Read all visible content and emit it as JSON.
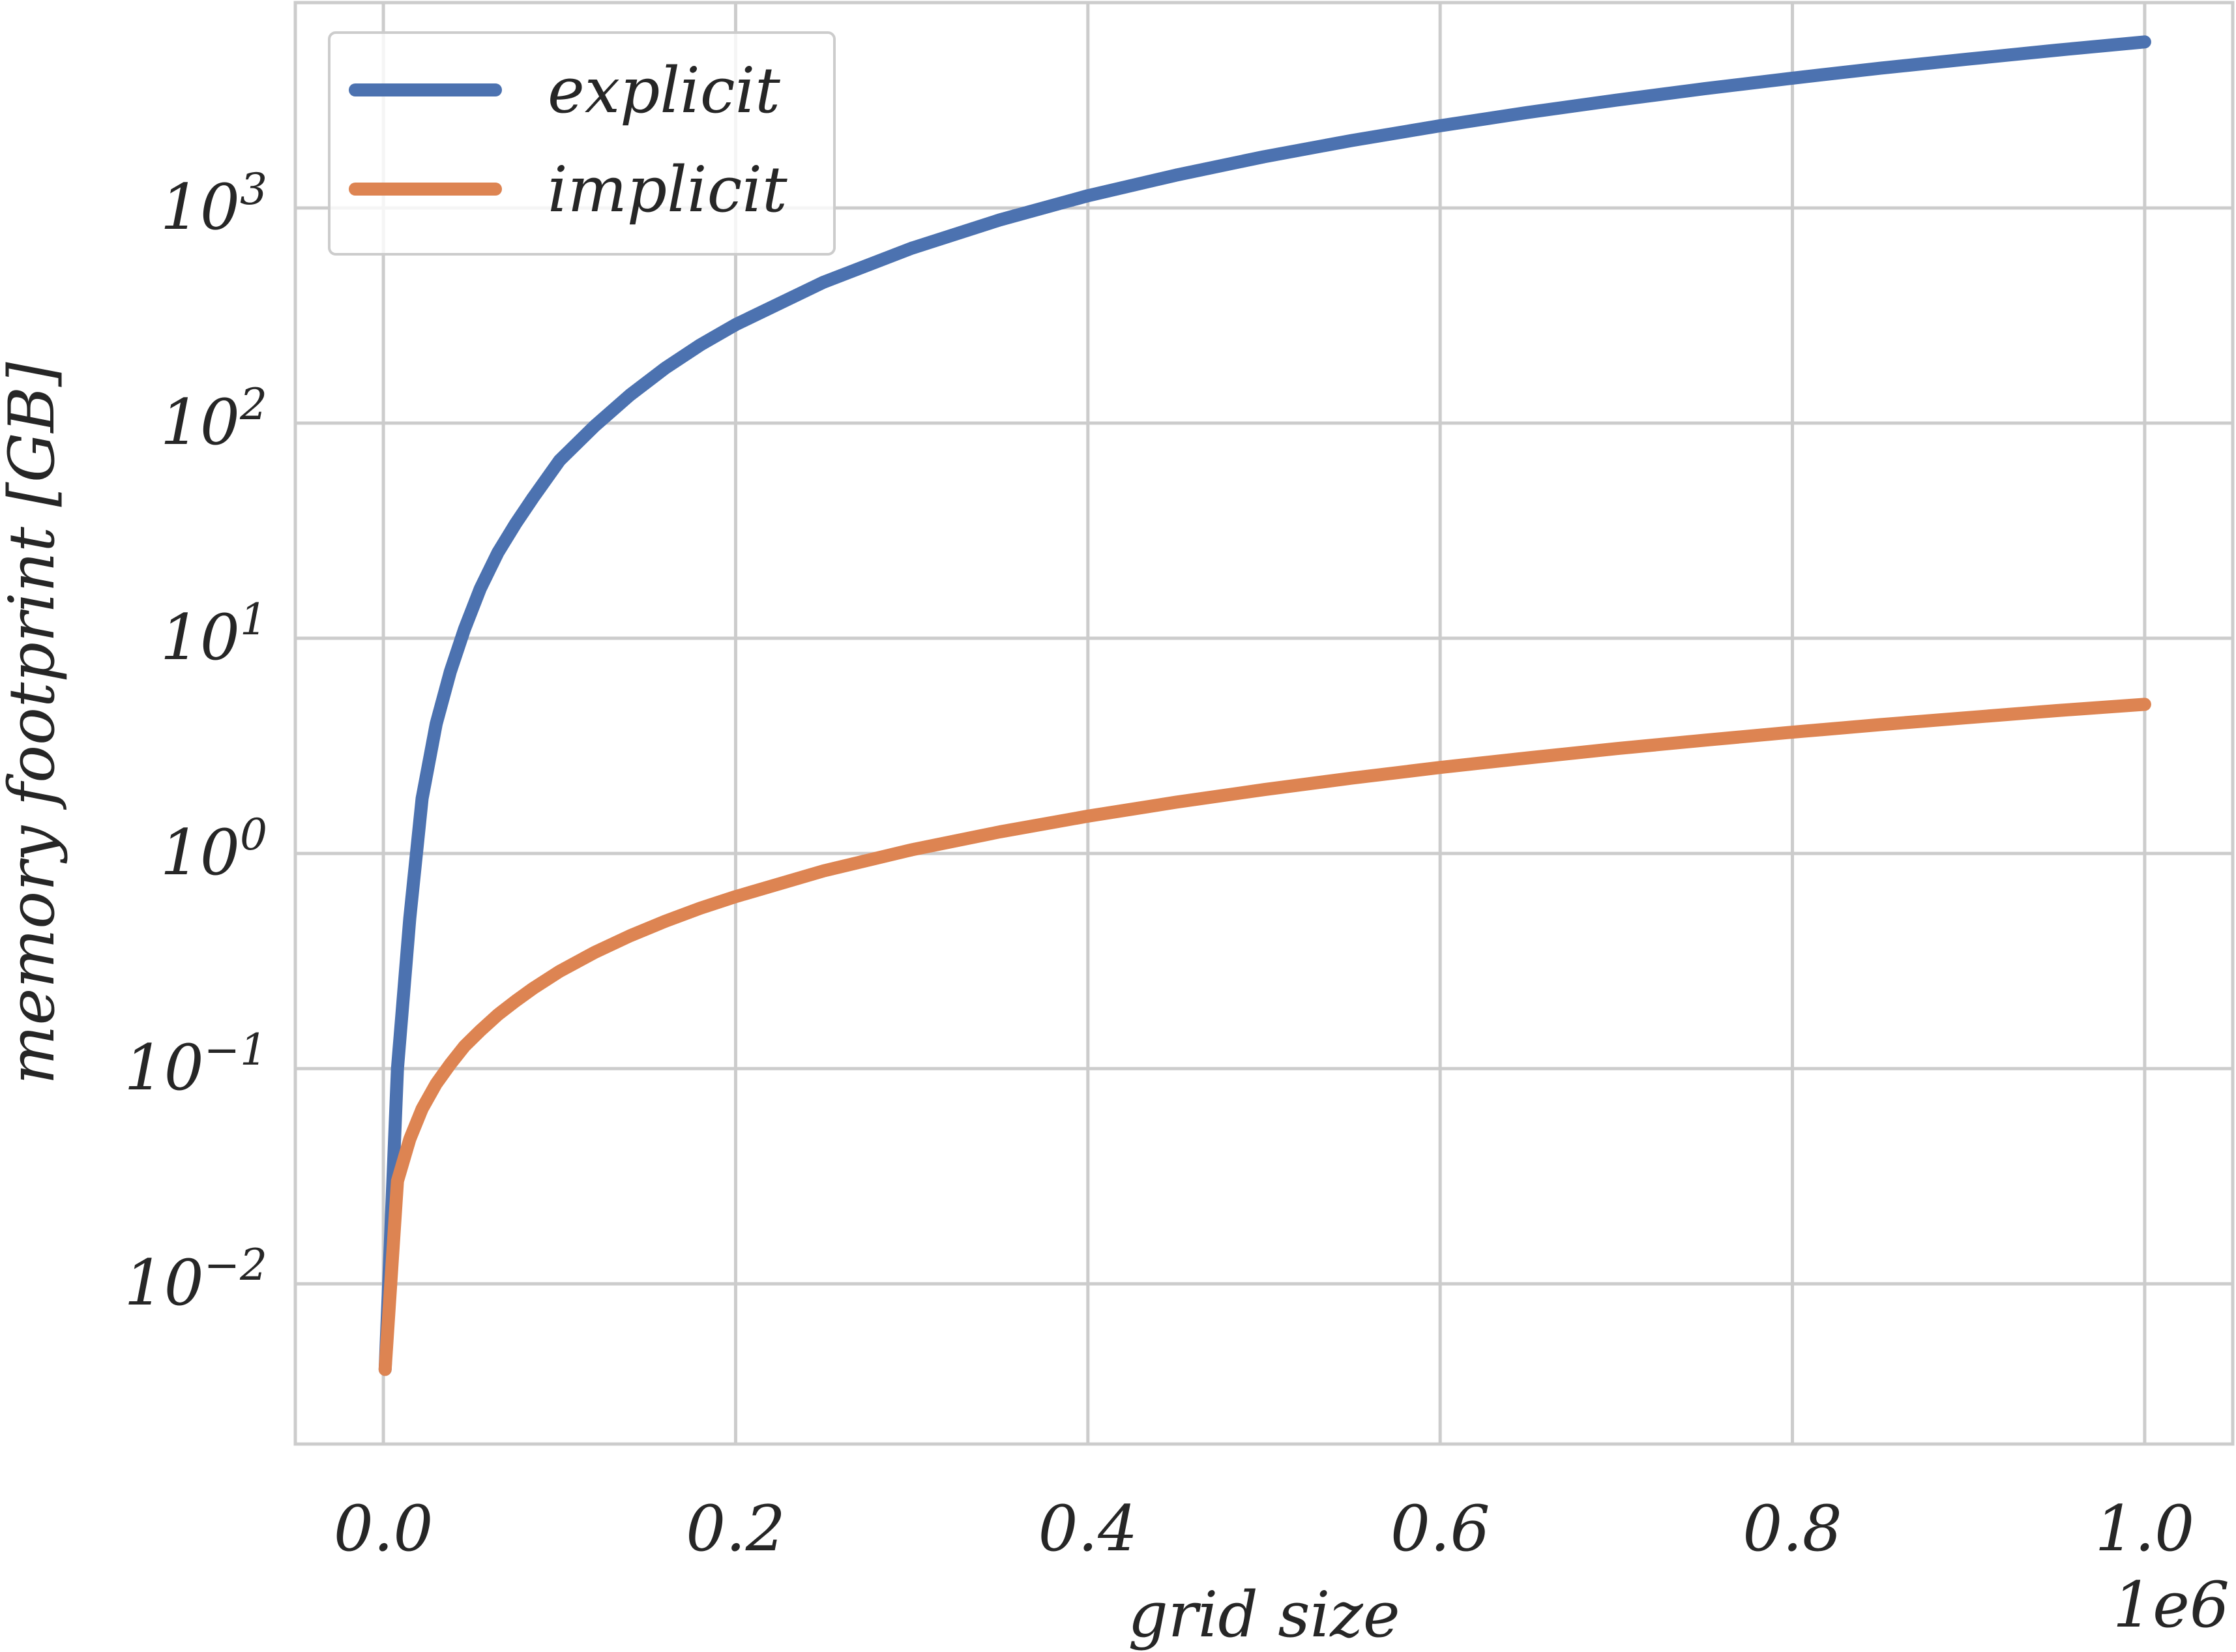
{
  "chart_data": {
    "type": "line",
    "title": "",
    "xlabel": "grid size",
    "ylabel": "memory footprint [GB]",
    "x_offset_label": "1e6",
    "xscale": "linear",
    "yscale": "log",
    "xlim": [
      -50000,
      1050000
    ],
    "ylim": [
      0.0018,
      9000
    ],
    "grid": true,
    "legend_position": "top-left",
    "x_ticks": [
      0,
      200000,
      400000,
      600000,
      800000,
      1000000
    ],
    "x_tick_labels": [
      "0.0",
      "0.2",
      "0.4",
      "0.6",
      "0.8",
      "1.0"
    ],
    "y_ticks": [
      0.01,
      0.1,
      1,
      10,
      100,
      1000
    ],
    "y_tick_labels": [
      {
        "base": "10",
        "exp": "−2"
      },
      {
        "base": "10",
        "exp": "−1"
      },
      {
        "base": "10",
        "exp": "0"
      },
      {
        "base": "10",
        "exp": "1"
      },
      {
        "base": "10",
        "exp": "2"
      },
      {
        "base": "10",
        "exp": "3"
      }
    ],
    "series": [
      {
        "name": "explicit",
        "color": "#4c72b0",
        "x": [
          1000,
          8000,
          15000,
          22000,
          30000,
          38000,
          46000,
          55000,
          65000,
          75000,
          85000,
          100000,
          120000,
          140000,
          160000,
          180000,
          200000,
          250000,
          300000,
          350000,
          400000,
          450000,
          500000,
          550000,
          600000,
          650000,
          700000,
          750000,
          800000,
          850000,
          900000,
          950000,
          1000000
        ],
        "y": [
          0.004,
          0.1,
          0.5,
          1.8,
          4,
          7,
          11,
          17,
          25,
          34,
          45,
          67,
          97,
          135,
          180,
          231,
          287,
          452,
          650,
          880,
          1140,
          1420,
          1730,
          2060,
          2410,
          2780,
          3170,
          3580,
          4010,
          4460,
          4920,
          5410,
          5910
        ]
      },
      {
        "name": "implicit",
        "color": "#dd8452",
        "x": [
          1000,
          8000,
          15000,
          22000,
          30000,
          38000,
          46000,
          55000,
          65000,
          75000,
          85000,
          100000,
          120000,
          140000,
          160000,
          180000,
          200000,
          250000,
          300000,
          350000,
          400000,
          450000,
          500000,
          550000,
          600000,
          650000,
          700000,
          750000,
          800000,
          850000,
          900000,
          950000,
          1000000
        ],
        "y": [
          0.004,
          0.03,
          0.047,
          0.065,
          0.085,
          0.105,
          0.127,
          0.15,
          0.178,
          0.206,
          0.236,
          0.283,
          0.347,
          0.414,
          0.484,
          0.557,
          0.63,
          0.83,
          1.04,
          1.26,
          1.49,
          1.73,
          1.98,
          2.24,
          2.51,
          2.78,
          3.07,
          3.36,
          3.66,
          3.97,
          4.28,
          4.61,
          4.93
        ]
      }
    ]
  }
}
